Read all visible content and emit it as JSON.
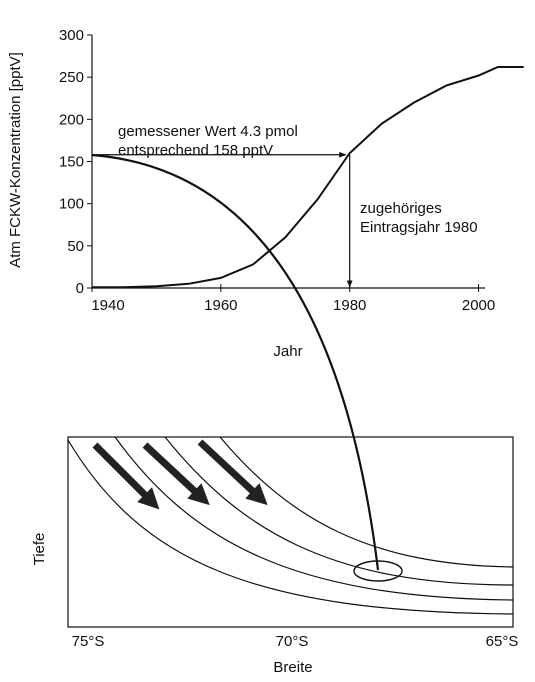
{
  "chart_data": {
    "type": "line",
    "ylabel": "Atm FCKW-Konzentration [pptV]",
    "xlabel": "Jahr",
    "x": [
      1940,
      1945,
      1950,
      1955,
      1960,
      1965,
      1970,
      1975,
      1980,
      1985,
      1990,
      1995,
      2000,
      2003,
      2007
    ],
    "values": [
      1,
      1,
      2,
      5,
      12,
      28,
      60,
      105,
      160,
      195,
      220,
      240,
      252,
      262,
      262
    ],
    "color": "#111111",
    "xlim": [
      1940,
      2001
    ],
    "ylim": [
      0,
      300
    ],
    "xticks": [
      1940,
      1960,
      1980,
      2000
    ],
    "yticks": [
      0,
      50,
      100,
      150,
      200,
      250,
      300
    ],
    "reference": {
      "y": 158,
      "x": 1980
    },
    "annotations": [
      "gemessener Wert 4.3 pmol",
      "entsprechend 158 pptV",
      "zugehöriges",
      "Eintragsjahr 1980"
    ]
  },
  "diagram": {
    "ylabel": "Tiefe",
    "xlabel": "Breite",
    "xticks": [
      "75°S",
      "70°S",
      "65°S"
    ]
  }
}
